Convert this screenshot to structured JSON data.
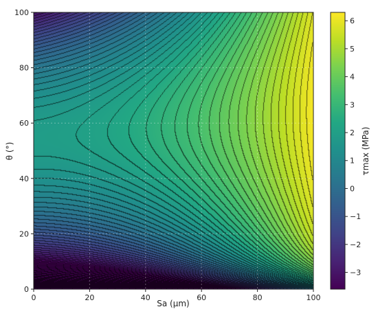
{
  "chart_data": {
    "type": "heatmap",
    "title": "",
    "xlabel": "Sa (μm)",
    "ylabel": "θ (°)",
    "colorbar_label": "τmax (MPa)",
    "colormap": "viridis",
    "xlim": [
      0,
      100
    ],
    "ylim": [
      0,
      100
    ],
    "xticks": [
      0,
      20,
      40,
      60,
      80,
      100
    ],
    "yticks": [
      0,
      20,
      40,
      60,
      80,
      100
    ],
    "clim": [
      -3.6,
      6.3
    ],
    "cbar_ticks": [
      -3,
      -2,
      -1,
      0,
      1,
      2,
      3,
      4,
      5,
      6
    ],
    "grid": true,
    "contour_lines": true,
    "saddle_point": {
      "x": 6.5,
      "y": 54.5,
      "z": 1.9
    },
    "maximum": {
      "x": 100,
      "y": 63,
      "z": 6.2
    },
    "z_samples": [
      {
        "x": 0,
        "y": 0,
        "z": -3.6
      },
      {
        "x": 0,
        "y": 20,
        "z": 0.9
      },
      {
        "x": 0,
        "y": 54.5,
        "z": 1.9
      },
      {
        "x": 0,
        "y": 100,
        "z": -1.0
      },
      {
        "x": 50,
        "y": 62,
        "z": 3.0
      },
      {
        "x": 100,
        "y": 63,
        "z": 6.2
      },
      {
        "x": 100,
        "y": 100,
        "z": 1.5
      },
      {
        "x": 100,
        "y": 0,
        "z": -3.6
      }
    ]
  },
  "xtick_labels": [
    "0",
    "20",
    "40",
    "60",
    "80",
    "100"
  ],
  "ytick_labels": [
    "0",
    "20",
    "40",
    "60",
    "80",
    "100"
  ],
  "cbar_tick_labels": [
    "−3",
    "−2",
    "−1",
    "0",
    "1",
    "2",
    "3",
    "4",
    "5",
    "6"
  ]
}
